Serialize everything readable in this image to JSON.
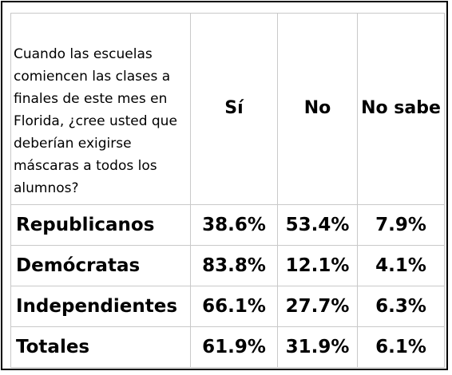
{
  "chart_data": {
    "type": "table",
    "question": "Cuando las escuelas comiencen las clases a finales de este mes en Florida, ¿cree usted que deberían exigirse máscaras a todos los alumnos?",
    "columns": [
      "Sí",
      "No",
      "No sabe"
    ],
    "rows": [
      {
        "label": "Republicanos",
        "values": [
          "38.6%",
          "53.4%",
          "7.9%"
        ]
      },
      {
        "label": "Demócratas",
        "values": [
          "83.8%",
          "12.1%",
          "4.1%"
        ]
      },
      {
        "label": "Independientes",
        "values": [
          "66.1%",
          "27.7%",
          "6.3%"
        ]
      },
      {
        "label": "Totales",
        "values": [
          "61.9%",
          "31.9%",
          "6.1%"
        ]
      }
    ]
  }
}
